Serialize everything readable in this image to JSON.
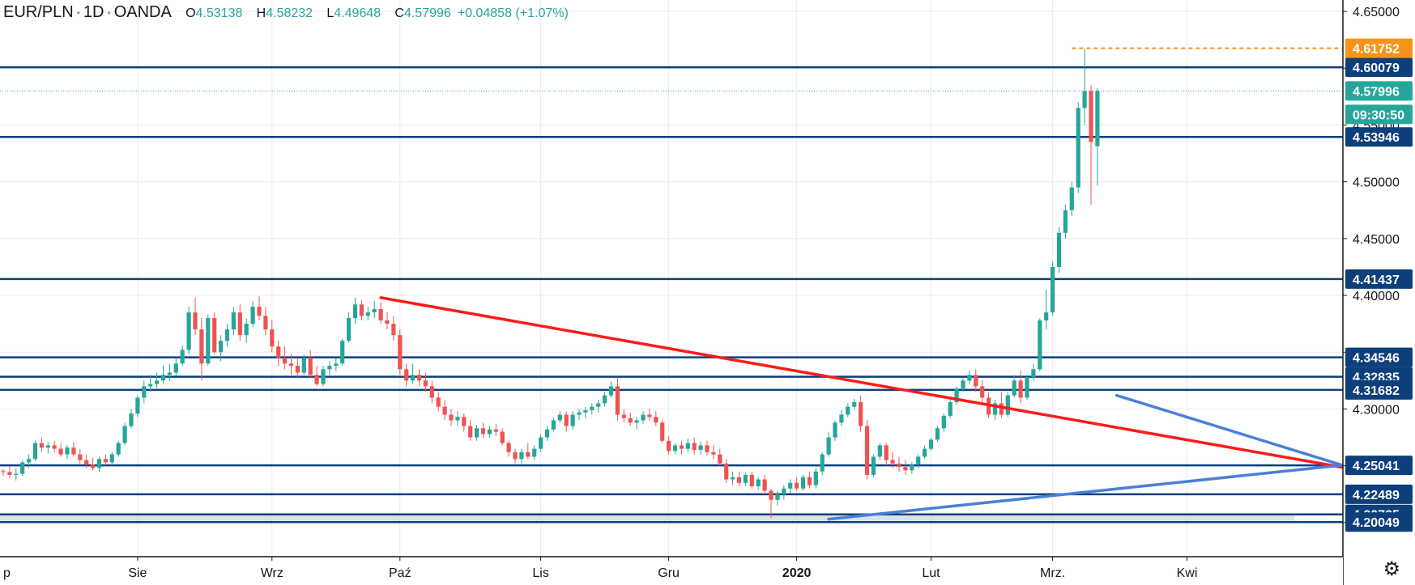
{
  "header": {
    "symbol": "EUR/PLN",
    "interval": "1D",
    "source": "OANDA",
    "open_label": "O",
    "open": "4.53138",
    "high_label": "H",
    "high": "4.58232",
    "low_label": "L",
    "low": "4.49648",
    "close_label": "C",
    "close": "4.57996",
    "change": "+0.04858 (+1.07%)"
  },
  "colors": {
    "up": "#26a69a",
    "down": "#ef5350",
    "level": "#0d3f7a",
    "trend_down": "#ff1a1a",
    "triangle": "#4a7fd9",
    "price_tag": "#26a69a",
    "high_tag": "#f7931a",
    "grid": "#e8ebf0"
  },
  "icons": {
    "settings": "gear-icon"
  },
  "chart_data": {
    "type": "candlestick",
    "title": "",
    "x_tick_labels": [
      "p",
      "Sie",
      "Wrz",
      "Paź",
      "Lis",
      "Gru",
      "2020",
      "Lut",
      "Mrz.",
      "Kwi"
    ],
    "y_ticks": [
      4.2,
      4.25,
      4.3,
      4.35,
      4.4,
      4.45,
      4.5,
      4.55,
      4.6,
      4.65
    ],
    "y_tick_labels": [
      "4.20000",
      "4.25000",
      "4.30000",
      "4.35000",
      "4.40000",
      "4.45000",
      "4.50000",
      "4.55000",
      "4.60000",
      "4.65000"
    ],
    "ylim": [
      4.17,
      4.66
    ],
    "grid": true,
    "horizontal_levels": [
      {
        "value": 4.60079,
        "label": "4.60079"
      },
      {
        "value": 4.53946,
        "label": "4.53946"
      },
      {
        "value": 4.41437,
        "label": "4.41437"
      },
      {
        "value": 4.34546,
        "label": "4.34546"
      },
      {
        "value": 4.32835,
        "label": "4.32835"
      },
      {
        "value": 4.31682,
        "label": "4.31682"
      },
      {
        "value": 4.25041,
        "label": "4.25041"
      },
      {
        "value": 4.22489,
        "label": "4.22489"
      },
      {
        "value": 4.20725,
        "label": "4.20725"
      },
      {
        "value": 4.20049,
        "label": "4.20049"
      }
    ],
    "last_price": {
      "value": 4.57996,
      "label": "4.57996",
      "countdown": "09:30:50"
    },
    "recent_high": {
      "value": 4.61752,
      "label": "4.61752"
    },
    "trend_lines": [
      {
        "name": "down",
        "points": [
          [
            59,
            4.398
          ],
          [
            215,
            4.243
          ]
        ]
      },
      {
        "name": "tri-upper",
        "points": [
          [
            174,
            4.312
          ],
          [
            209,
            4.251
          ]
        ]
      },
      {
        "name": "tri-lower",
        "points": [
          [
            129,
            4.203
          ],
          [
            210,
            4.251
          ]
        ]
      }
    ],
    "ohlc": [
      [
        4.2453,
        4.2475,
        4.241,
        4.2445
      ],
      [
        4.2445,
        4.25,
        4.239,
        4.242
      ],
      [
        4.242,
        4.248,
        4.237,
        4.243
      ],
      [
        4.243,
        4.255,
        4.241,
        4.253
      ],
      [
        4.253,
        4.26,
        4.248,
        4.256
      ],
      [
        4.256,
        4.272,
        4.254,
        4.27
      ],
      [
        4.27,
        4.275,
        4.262,
        4.266
      ],
      [
        4.266,
        4.271,
        4.261,
        4.268
      ],
      [
        4.268,
        4.272,
        4.262,
        4.265
      ],
      [
        4.265,
        4.27,
        4.258,
        4.26
      ],
      [
        4.26,
        4.268,
        4.256,
        4.266
      ],
      [
        4.266,
        4.271,
        4.258,
        4.26
      ],
      [
        4.26,
        4.265,
        4.252,
        4.255
      ],
      [
        4.255,
        4.26,
        4.248,
        4.251
      ],
      [
        4.251,
        4.257,
        4.246,
        4.248
      ],
      [
        4.248,
        4.258,
        4.245,
        4.256
      ],
      [
        4.256,
        4.26,
        4.25,
        4.253
      ],
      [
        4.253,
        4.262,
        4.25,
        4.26
      ],
      [
        4.26,
        4.272,
        4.258,
        4.27
      ],
      [
        4.27,
        4.288,
        4.268,
        4.285
      ],
      [
        4.285,
        4.3,
        4.283,
        4.296
      ],
      [
        4.296,
        4.312,
        4.293,
        4.31
      ],
      [
        4.31,
        4.325,
        4.305,
        4.32
      ],
      [
        4.32,
        4.33,
        4.315,
        4.322
      ],
      [
        4.322,
        4.332,
        4.318,
        4.325
      ],
      [
        4.325,
        4.338,
        4.322,
        4.33
      ],
      [
        4.33,
        4.34,
        4.325,
        4.332
      ],
      [
        4.332,
        4.345,
        4.329,
        4.34
      ],
      [
        4.34,
        4.356,
        4.338,
        4.352
      ],
      [
        4.352,
        4.39,
        4.348,
        4.385
      ],
      [
        4.385,
        4.398,
        4.365,
        4.37
      ],
      [
        4.37,
        4.38,
        4.325,
        4.34
      ],
      [
        4.34,
        4.383,
        4.338,
        4.38
      ],
      [
        4.38,
        4.385,
        4.348,
        4.35
      ],
      [
        4.35,
        4.365,
        4.342,
        4.36
      ],
      [
        4.36,
        4.375,
        4.355,
        4.37
      ],
      [
        4.37,
        4.39,
        4.365,
        4.385
      ],
      [
        4.385,
        4.392,
        4.36,
        4.365
      ],
      [
        4.365,
        4.38,
        4.358,
        4.375
      ],
      [
        4.375,
        4.395,
        4.372,
        4.39
      ],
      [
        4.39,
        4.399,
        4.378,
        4.382
      ],
      [
        4.382,
        4.39,
        4.365,
        4.37
      ],
      [
        4.37,
        4.378,
        4.35,
        4.355
      ],
      [
        4.355,
        4.36,
        4.338,
        4.345
      ],
      [
        4.345,
        4.355,
        4.335,
        4.34
      ],
      [
        4.34,
        4.348,
        4.33,
        4.338
      ],
      [
        4.338,
        4.345,
        4.328,
        4.332
      ],
      [
        4.332,
        4.348,
        4.33,
        4.345
      ],
      [
        4.345,
        4.352,
        4.328,
        4.33
      ],
      [
        4.33,
        4.338,
        4.32,
        4.322
      ],
      [
        4.322,
        4.338,
        4.32,
        4.335
      ],
      [
        4.335,
        4.342,
        4.33,
        4.338
      ],
      [
        4.338,
        4.345,
        4.333,
        4.34
      ],
      [
        4.34,
        4.362,
        4.338,
        4.36
      ],
      [
        4.36,
        4.385,
        4.358,
        4.38
      ],
      [
        4.38,
        4.398,
        4.375,
        4.392
      ],
      [
        4.392,
        4.396,
        4.378,
        4.382
      ],
      [
        4.382,
        4.39,
        4.378,
        4.385
      ],
      [
        4.385,
        4.395,
        4.38,
        4.388
      ],
      [
        4.388,
        4.394,
        4.375,
        4.378
      ],
      [
        4.378,
        4.385,
        4.37,
        4.375
      ],
      [
        4.375,
        4.382,
        4.36,
        4.365
      ],
      [
        4.365,
        4.37,
        4.33,
        4.335
      ],
      [
        4.335,
        4.34,
        4.32,
        4.325
      ],
      [
        4.325,
        4.34,
        4.322,
        4.33
      ],
      [
        4.33,
        4.335,
        4.32,
        4.325
      ],
      [
        4.325,
        4.332,
        4.315,
        4.32
      ],
      [
        4.32,
        4.325,
        4.305,
        4.31
      ],
      [
        4.31,
        4.315,
        4.298,
        4.302
      ],
      [
        4.302,
        4.308,
        4.29,
        4.295
      ],
      [
        4.295,
        4.3,
        4.285,
        4.29
      ],
      [
        4.29,
        4.298,
        4.285,
        4.293
      ],
      [
        4.293,
        4.296,
        4.28,
        4.285
      ],
      [
        4.285,
        4.29,
        4.272,
        4.275
      ],
      [
        4.275,
        4.286,
        4.272,
        4.283
      ],
      [
        4.283,
        4.288,
        4.275,
        4.278
      ],
      [
        4.278,
        4.285,
        4.275,
        4.282
      ],
      [
        4.282,
        4.287,
        4.276,
        4.28
      ],
      [
        4.28,
        4.283,
        4.268,
        4.27
      ],
      [
        4.27,
        4.272,
        4.258,
        4.262
      ],
      [
        4.262,
        4.265,
        4.252,
        4.256
      ],
      [
        4.256,
        4.265,
        4.252,
        4.262
      ],
      [
        4.262,
        4.27,
        4.256,
        4.258
      ],
      [
        4.258,
        4.268,
        4.255,
        4.265
      ],
      [
        4.265,
        4.278,
        4.262,
        4.275
      ],
      [
        4.275,
        4.285,
        4.272,
        4.282
      ],
      [
        4.282,
        4.292,
        4.28,
        4.29
      ],
      [
        4.29,
        4.298,
        4.288,
        4.295
      ],
      [
        4.295,
        4.298,
        4.28,
        4.285
      ],
      [
        4.285,
        4.298,
        4.282,
        4.295
      ],
      [
        4.295,
        4.3,
        4.29,
        4.297
      ],
      [
        4.297,
        4.302,
        4.292,
        4.299
      ],
      [
        4.299,
        4.305,
        4.295,
        4.302
      ],
      [
        4.302,
        4.308,
        4.297,
        4.305
      ],
      [
        4.305,
        4.315,
        4.302,
        4.312
      ],
      [
        4.312,
        4.324,
        4.31,
        4.32
      ],
      [
        4.32,
        4.328,
        4.29,
        4.295
      ],
      [
        4.295,
        4.3,
        4.288,
        4.292
      ],
      [
        4.292,
        4.297,
        4.285,
        4.288
      ],
      [
        4.288,
        4.293,
        4.282,
        4.29
      ],
      [
        4.29,
        4.298,
        4.287,
        4.295
      ],
      [
        4.295,
        4.3,
        4.29,
        4.293
      ],
      [
        4.293,
        4.298,
        4.285,
        4.288
      ],
      [
        4.288,
        4.29,
        4.27,
        4.272
      ],
      [
        4.272,
        4.276,
        4.26,
        4.263
      ],
      [
        4.263,
        4.27,
        4.26,
        4.268
      ],
      [
        4.268,
        4.272,
        4.26,
        4.265
      ],
      [
        4.265,
        4.274,
        4.262,
        4.27
      ],
      [
        4.27,
        4.275,
        4.26,
        4.264
      ],
      [
        4.264,
        4.271,
        4.26,
        4.268
      ],
      [
        4.268,
        4.272,
        4.259,
        4.262
      ],
      [
        4.262,
        4.268,
        4.256,
        4.26
      ],
      [
        4.26,
        4.265,
        4.25,
        4.252
      ],
      [
        4.252,
        4.256,
        4.235,
        4.238
      ],
      [
        4.238,
        4.245,
        4.233,
        4.24
      ],
      [
        4.24,
        4.245,
        4.232,
        4.235
      ],
      [
        4.235,
        4.244,
        4.232,
        4.242
      ],
      [
        4.242,
        4.245,
        4.23,
        4.232
      ],
      [
        4.232,
        4.24,
        4.229,
        4.238
      ],
      [
        4.238,
        4.242,
        4.225,
        4.228
      ],
      [
        4.228,
        4.23,
        4.204,
        4.22
      ],
      [
        4.22,
        4.228,
        4.215,
        4.225
      ],
      [
        4.225,
        4.233,
        4.22,
        4.23
      ],
      [
        4.23,
        4.238,
        4.226,
        4.235
      ],
      [
        4.235,
        4.24,
        4.228,
        4.23
      ],
      [
        4.23,
        4.242,
        4.228,
        4.24
      ],
      [
        4.24,
        4.245,
        4.23,
        4.233
      ],
      [
        4.233,
        4.248,
        4.23,
        4.245
      ],
      [
        4.245,
        4.262,
        4.242,
        4.26
      ],
      [
        4.26,
        4.28,
        4.258,
        4.275
      ],
      [
        4.275,
        4.29,
        4.272,
        4.288
      ],
      [
        4.288,
        4.299,
        4.285,
        4.295
      ],
      [
        4.295,
        4.305,
        4.293,
        4.302
      ],
      [
        4.302,
        4.309,
        4.299,
        4.306
      ],
      [
        4.306,
        4.312,
        4.28,
        4.285
      ],
      [
        4.285,
        4.29,
        4.238,
        4.242
      ],
      [
        4.242,
        4.26,
        4.24,
        4.258
      ],
      [
        4.258,
        4.27,
        4.255,
        4.268
      ],
      [
        4.268,
        4.27,
        4.25,
        4.255
      ],
      [
        4.255,
        4.262,
        4.248,
        4.252
      ],
      [
        4.252,
        4.258,
        4.245,
        4.249
      ],
      [
        4.249,
        4.255,
        4.242,
        4.246
      ],
      [
        4.246,
        4.253,
        4.243,
        4.251
      ],
      [
        4.251,
        4.26,
        4.248,
        4.258
      ],
      [
        4.258,
        4.268,
        4.256,
        4.265
      ],
      [
        4.265,
        4.275,
        4.263,
        4.273
      ],
      [
        4.273,
        4.285,
        4.271,
        4.283
      ],
      [
        4.283,
        4.296,
        4.28,
        4.294
      ],
      [
        4.294,
        4.308,
        4.292,
        4.306
      ],
      [
        4.306,
        4.32,
        4.304,
        4.318
      ],
      [
        4.318,
        4.328,
        4.315,
        4.325
      ],
      [
        4.325,
        4.334,
        4.322,
        4.33
      ],
      [
        4.33,
        4.335,
        4.315,
        4.32
      ],
      [
        4.32,
        4.325,
        4.305,
        4.31
      ],
      [
        4.31,
        4.315,
        4.292,
        4.295
      ],
      [
        4.295,
        4.308,
        4.29,
        4.305
      ],
      [
        4.305,
        4.315,
        4.292,
        4.295
      ],
      [
        4.295,
        4.315,
        4.293,
        4.312
      ],
      [
        4.312,
        4.33,
        4.31,
        4.325
      ],
      [
        4.325,
        4.334,
        4.305,
        4.31
      ],
      [
        4.31,
        4.33,
        4.308,
        4.328
      ],
      [
        4.328,
        4.34,
        4.325,
        4.335
      ],
      [
        4.335,
        4.38,
        4.333,
        4.378
      ],
      [
        4.378,
        4.405,
        4.37,
        4.385
      ],
      [
        4.385,
        4.43,
        4.382,
        4.425
      ],
      [
        4.425,
        4.46,
        4.42,
        4.455
      ],
      [
        4.455,
        4.48,
        4.45,
        4.475
      ],
      [
        4.475,
        4.5,
        4.47,
        4.495
      ],
      [
        4.495,
        4.57,
        4.49,
        4.565
      ],
      [
        4.565,
        4.6175,
        4.55,
        4.58
      ],
      [
        4.58,
        4.585,
        4.48,
        4.535
      ],
      [
        4.5313,
        4.5823,
        4.4965,
        4.58
      ]
    ]
  }
}
